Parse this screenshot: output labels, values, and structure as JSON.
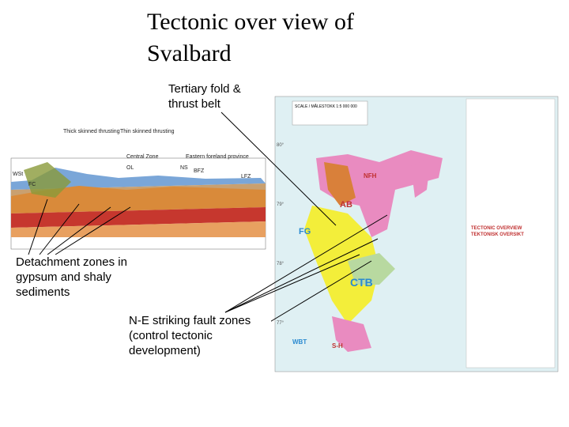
{
  "header": {
    "title": "Tectonic over view of Svalbard"
  },
  "annotations": {
    "fold_belt": "Tertiary fold & thrust belt",
    "detachment": "Detachment zones in gypsum and shaly sediments",
    "fault_zones": "N-E striking fault zones (control tectonic development)"
  },
  "cross_section": {
    "labels": [
      "Thick skinned thrusting",
      "Thin skinned thrusting",
      "Central Zone",
      "Eastern foreland province",
      "WSt",
      "FC",
      "BFZ",
      "LFZ",
      "OL",
      "NS"
    ]
  },
  "map": {
    "labels": [
      "SCALE / MÅLESTOKK 1:5 000 000",
      "TECTONIC OVERVIEW",
      "TEKTONISK OVERSIKT",
      "AB",
      "CTB",
      "FG",
      "NFH",
      "WBT",
      "S-H",
      "80°",
      "79°",
      "78°",
      "77°"
    ]
  }
}
